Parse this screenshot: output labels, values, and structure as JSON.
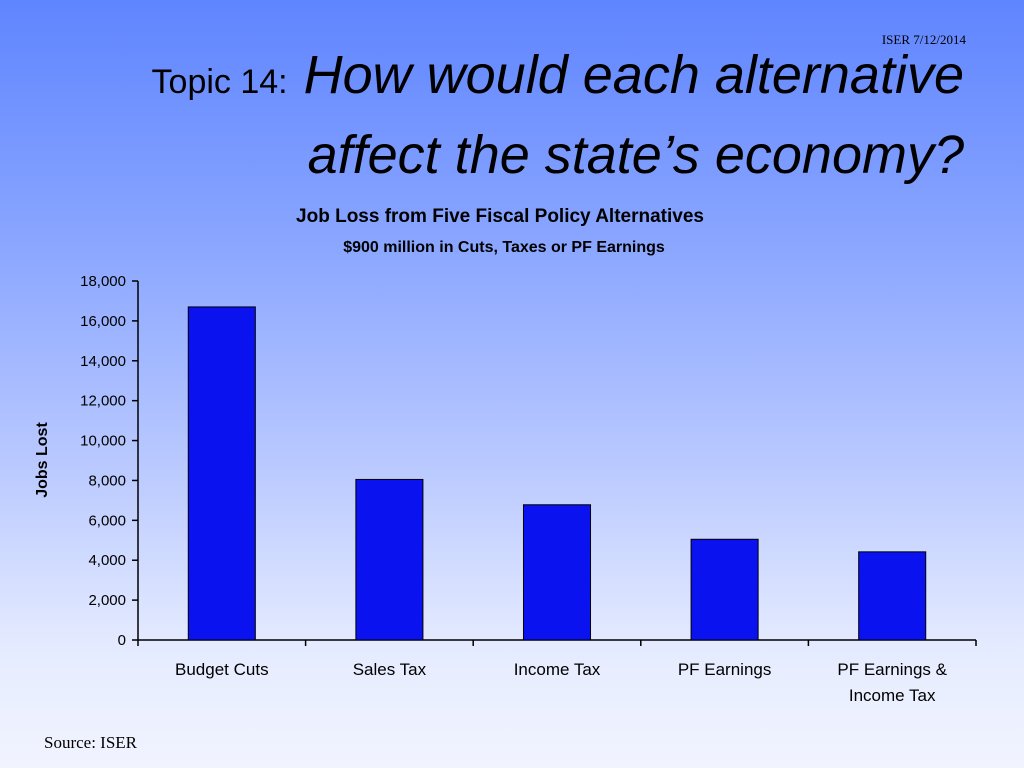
{
  "slide": {
    "stamp": "ISER 7/12/2014",
    "title_prefix": "Topic 14:",
    "title_line1": "How would each alternative",
    "title_line2": "affect the state’s economy?",
    "source": "Source: ISER"
  },
  "colors": {
    "bar": "#0a12f0",
    "axis": "#000000",
    "background_top": "#5f85ff",
    "background_bottom": "#f1f4ff"
  },
  "chart_data": {
    "type": "bar",
    "title": "Job Loss from Five Fiscal Policy Alternatives",
    "subtitle": "$900 million in Cuts, Taxes or PF Earnings",
    "xlabel": "",
    "ylabel": "Jobs Lost",
    "categories": [
      [
        "Budget Cuts"
      ],
      [
        "Sales Tax"
      ],
      [
        "Income Tax"
      ],
      [
        "PF Earnings"
      ],
      [
        "PF Earnings &",
        "Income Tax"
      ]
    ],
    "values": [
      16700,
      8050,
      6780,
      5050,
      4420
    ],
    "ylim": [
      0,
      18000
    ],
    "yticks": [
      "0",
      "2,000",
      "4,000",
      "6,000",
      "8,000",
      "10,000",
      "12,000",
      "14,000",
      "16,000",
      "18,000"
    ],
    "grid": false,
    "legend": "none"
  }
}
